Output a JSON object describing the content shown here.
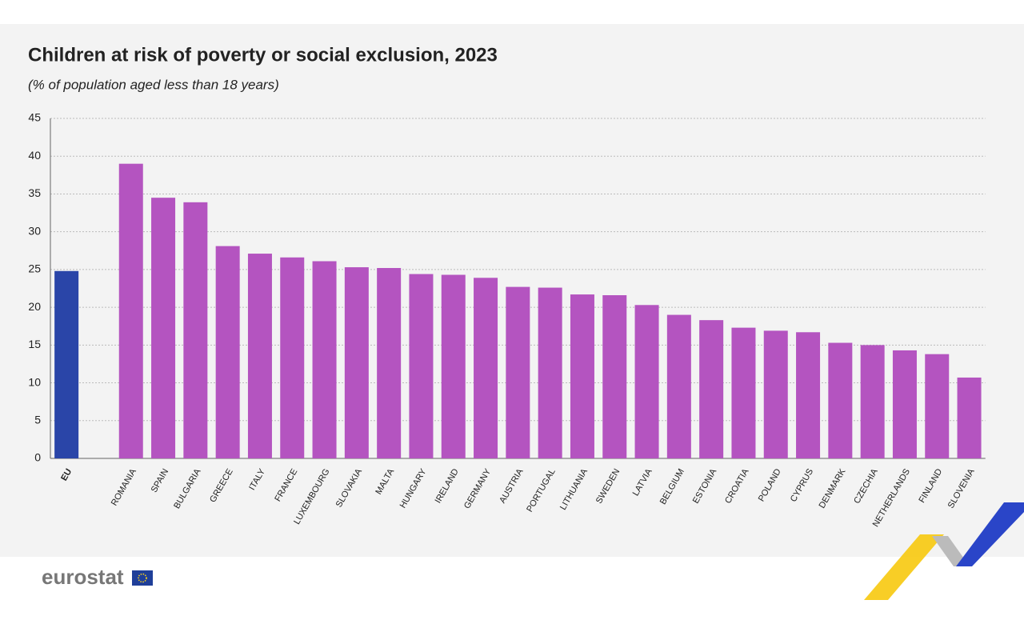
{
  "chart_data": {
    "type": "bar",
    "title": "Children at risk of poverty or social exclusion, 2023",
    "subtitle": "(% of population aged less than 18 years)",
    "categories": [
      "EU",
      null,
      "ROMANIA",
      "SPAIN",
      "BULGARIA",
      "GREECE",
      "ITALY",
      "FRANCE",
      "LUXEMBOURG",
      "SLOVAKIA",
      "MALTA",
      "HUNGARY",
      "IRELAND",
      "GERMANY",
      "AUSTRIA",
      "PORTUGAL",
      "LITHUANIA",
      "SWEDEN",
      "LATVIA",
      "BELGIUM",
      "ESTONIA",
      "CROATIA",
      "POLAND",
      "CYPRUS",
      "DENMARK",
      "CZECHIA",
      "NETHERLANDS",
      "FINLAND",
      "SLOVENIA"
    ],
    "values": [
      24.8,
      null,
      39.0,
      34.5,
      33.9,
      28.1,
      27.1,
      26.6,
      26.1,
      25.3,
      25.2,
      24.4,
      24.3,
      23.9,
      22.7,
      22.6,
      21.7,
      21.6,
      20.3,
      19.0,
      18.3,
      17.3,
      16.9,
      16.7,
      15.3,
      15.0,
      14.3,
      13.8,
      10.7
    ],
    "colors": [
      "#2a45a8",
      null,
      "#b454c0",
      "#b454c0",
      "#b454c0",
      "#b454c0",
      "#b454c0",
      "#b454c0",
      "#b454c0",
      "#b454c0",
      "#b454c0",
      "#b454c0",
      "#b454c0",
      "#b454c0",
      "#b454c0",
      "#b454c0",
      "#b454c0",
      "#b454c0",
      "#b454c0",
      "#b454c0",
      "#b454c0",
      "#b454c0",
      "#b454c0",
      "#b454c0",
      "#b454c0",
      "#b454c0",
      "#b454c0",
      "#b454c0",
      "#b454c0"
    ],
    "ylim": [
      0,
      45
    ],
    "yticks": [
      0,
      5,
      10,
      15,
      20,
      25,
      30,
      35,
      40,
      45
    ],
    "grid": true
  },
  "logo": "eurostat"
}
